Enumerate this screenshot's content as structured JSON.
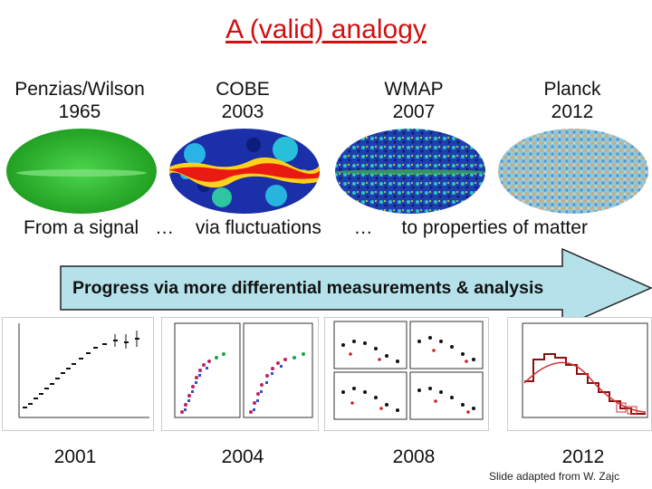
{
  "title": "A (valid) analogy",
  "experiments": [
    {
      "name": "Penzias/Wilson",
      "year": "1965"
    },
    {
      "name": "COBE",
      "year": "2003"
    },
    {
      "name": "WMAP",
      "year": "2007"
    },
    {
      "name": "Planck",
      "year": "2012"
    }
  ],
  "caption": {
    "part1": "From a signal",
    "ellipsis1": "…",
    "part2": "via fluctuations",
    "ellipsis2": "…",
    "part3": "to properties of matter"
  },
  "progress_arrow": {
    "label": "Progress via more differential measurements & analysis",
    "color": "#b5e2ea"
  },
  "plot_years": [
    "2001",
    "2004",
    "2008",
    "2012"
  ],
  "credit": "Slide adapted from W. Zajc",
  "colors": {
    "title": "#d01010",
    "arrow_fill": "#b5e2ea"
  }
}
